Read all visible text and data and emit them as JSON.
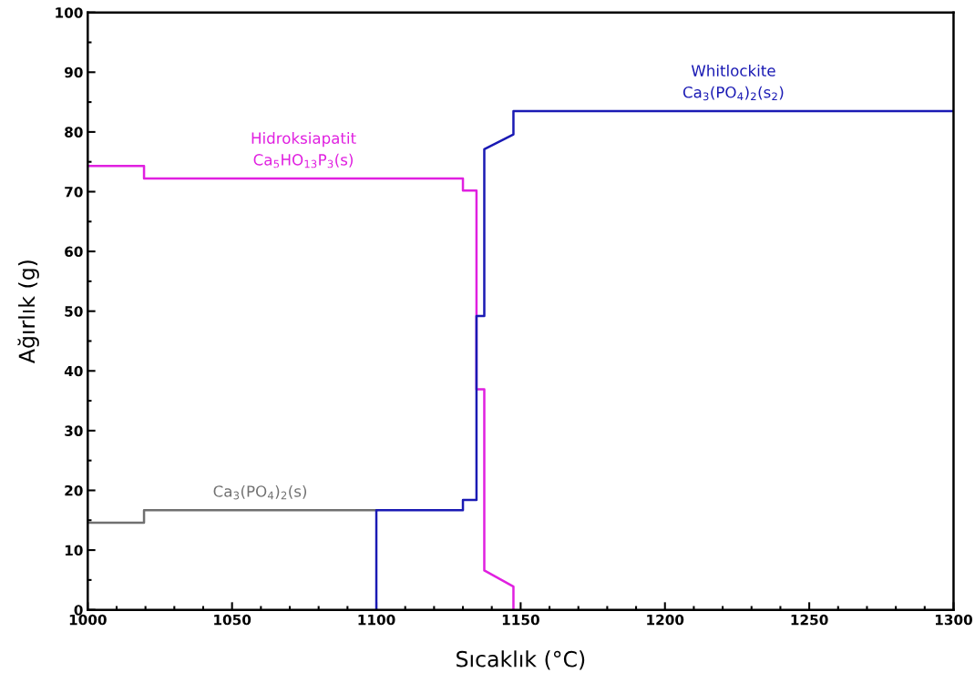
{
  "chart_data": {
    "type": "line",
    "xlabel": "Sıcaklık (°C)",
    "ylabel": "Ağırlık (g)",
    "xlim": [
      1000,
      1300
    ],
    "xticks": [
      1000,
      1050,
      1100,
      1150,
      1200,
      1250,
      1300
    ],
    "ylim": [
      0,
      100
    ],
    "yticks": [
      0,
      10,
      20,
      30,
      40,
      50,
      60,
      70,
      80,
      90,
      100
    ],
    "grid": false,
    "legend": false,
    "marker": "none",
    "line_style": "solid",
    "series": [
      {
        "name": "Hidroksiapatit\nCa$_{5}$HO$_{13}$P$_{3}$(s)",
        "color": "#e020e0",
        "x": [
          1000,
          1019.5,
          1019.5,
          1130,
          1130,
          1134.7,
          1134.7,
          1137.4,
          1137.4,
          1147.5,
          1147.5
        ],
        "values": [
          74.3,
          74.3,
          72.2,
          72.2,
          70.2,
          70.2,
          36.9,
          36.9,
          6.6,
          3.9,
          0
        ]
      },
      {
        "name": "Ca$_{3}$(PO$_{4}$)$_{2}$(s)",
        "color": "#707070",
        "x": [
          1000,
          1019.5,
          1019.5,
          1100
        ],
        "values": [
          14.6,
          14.6,
          16.7,
          16.7
        ]
      },
      {
        "name": "Whitlockite\nCa$_{3}$(PO$_{4}$)$_{2}$(s$_{2}$)",
        "color": "#1a1ab4",
        "x": [
          1100,
          1100,
          1130,
          1130,
          1134.7,
          1134.7,
          1137.4,
          1137.4,
          1147.5,
          1147.5,
          1300
        ],
        "values": [
          0,
          16.7,
          16.7,
          18.4,
          18.4,
          49.2,
          49.2,
          77.1,
          79.6,
          83.5,
          83.5
        ]
      }
    ]
  }
}
